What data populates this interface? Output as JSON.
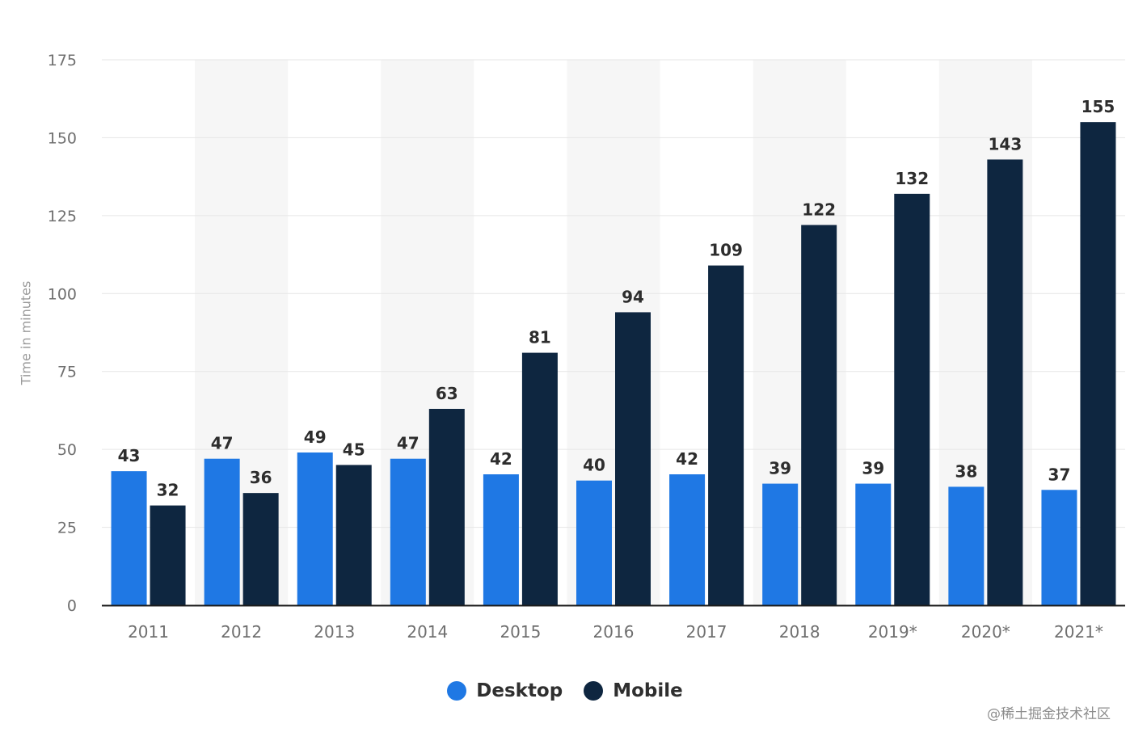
{
  "colors": {
    "desktop": "#1f78e4",
    "mobile": "#0e2640",
    "grid": "#e6e6e6",
    "axis": "#1c1c1c",
    "band": "#f6f6f6",
    "tick_text": "#6f6f6f",
    "label_text": "#2d2d2d"
  },
  "chart_data": {
    "type": "bar",
    "ylabel": "Time in minutes",
    "ylim": [
      0,
      175
    ],
    "yticks": [
      "0",
      "25",
      "50",
      "75",
      "100",
      "125",
      "150",
      "175"
    ],
    "categories": [
      "2011",
      "2012",
      "2013",
      "2014",
      "2015",
      "2016",
      "2017",
      "2018",
      "2019*",
      "2020*",
      "2021*"
    ],
    "grid": true,
    "legend_position": "bottom-center",
    "series": [
      {
        "name": "Desktop",
        "values": [
          43,
          47,
          49,
          47,
          42,
          40,
          42,
          39,
          39,
          38,
          37
        ]
      },
      {
        "name": "Mobile",
        "values": [
          32,
          36,
          45,
          63,
          81,
          94,
          109,
          122,
          132,
          143,
          155
        ]
      }
    ]
  },
  "legend": {
    "desktop_label": "Desktop",
    "mobile_label": "Mobile"
  },
  "watermark": "@稀土掘金技术社区"
}
